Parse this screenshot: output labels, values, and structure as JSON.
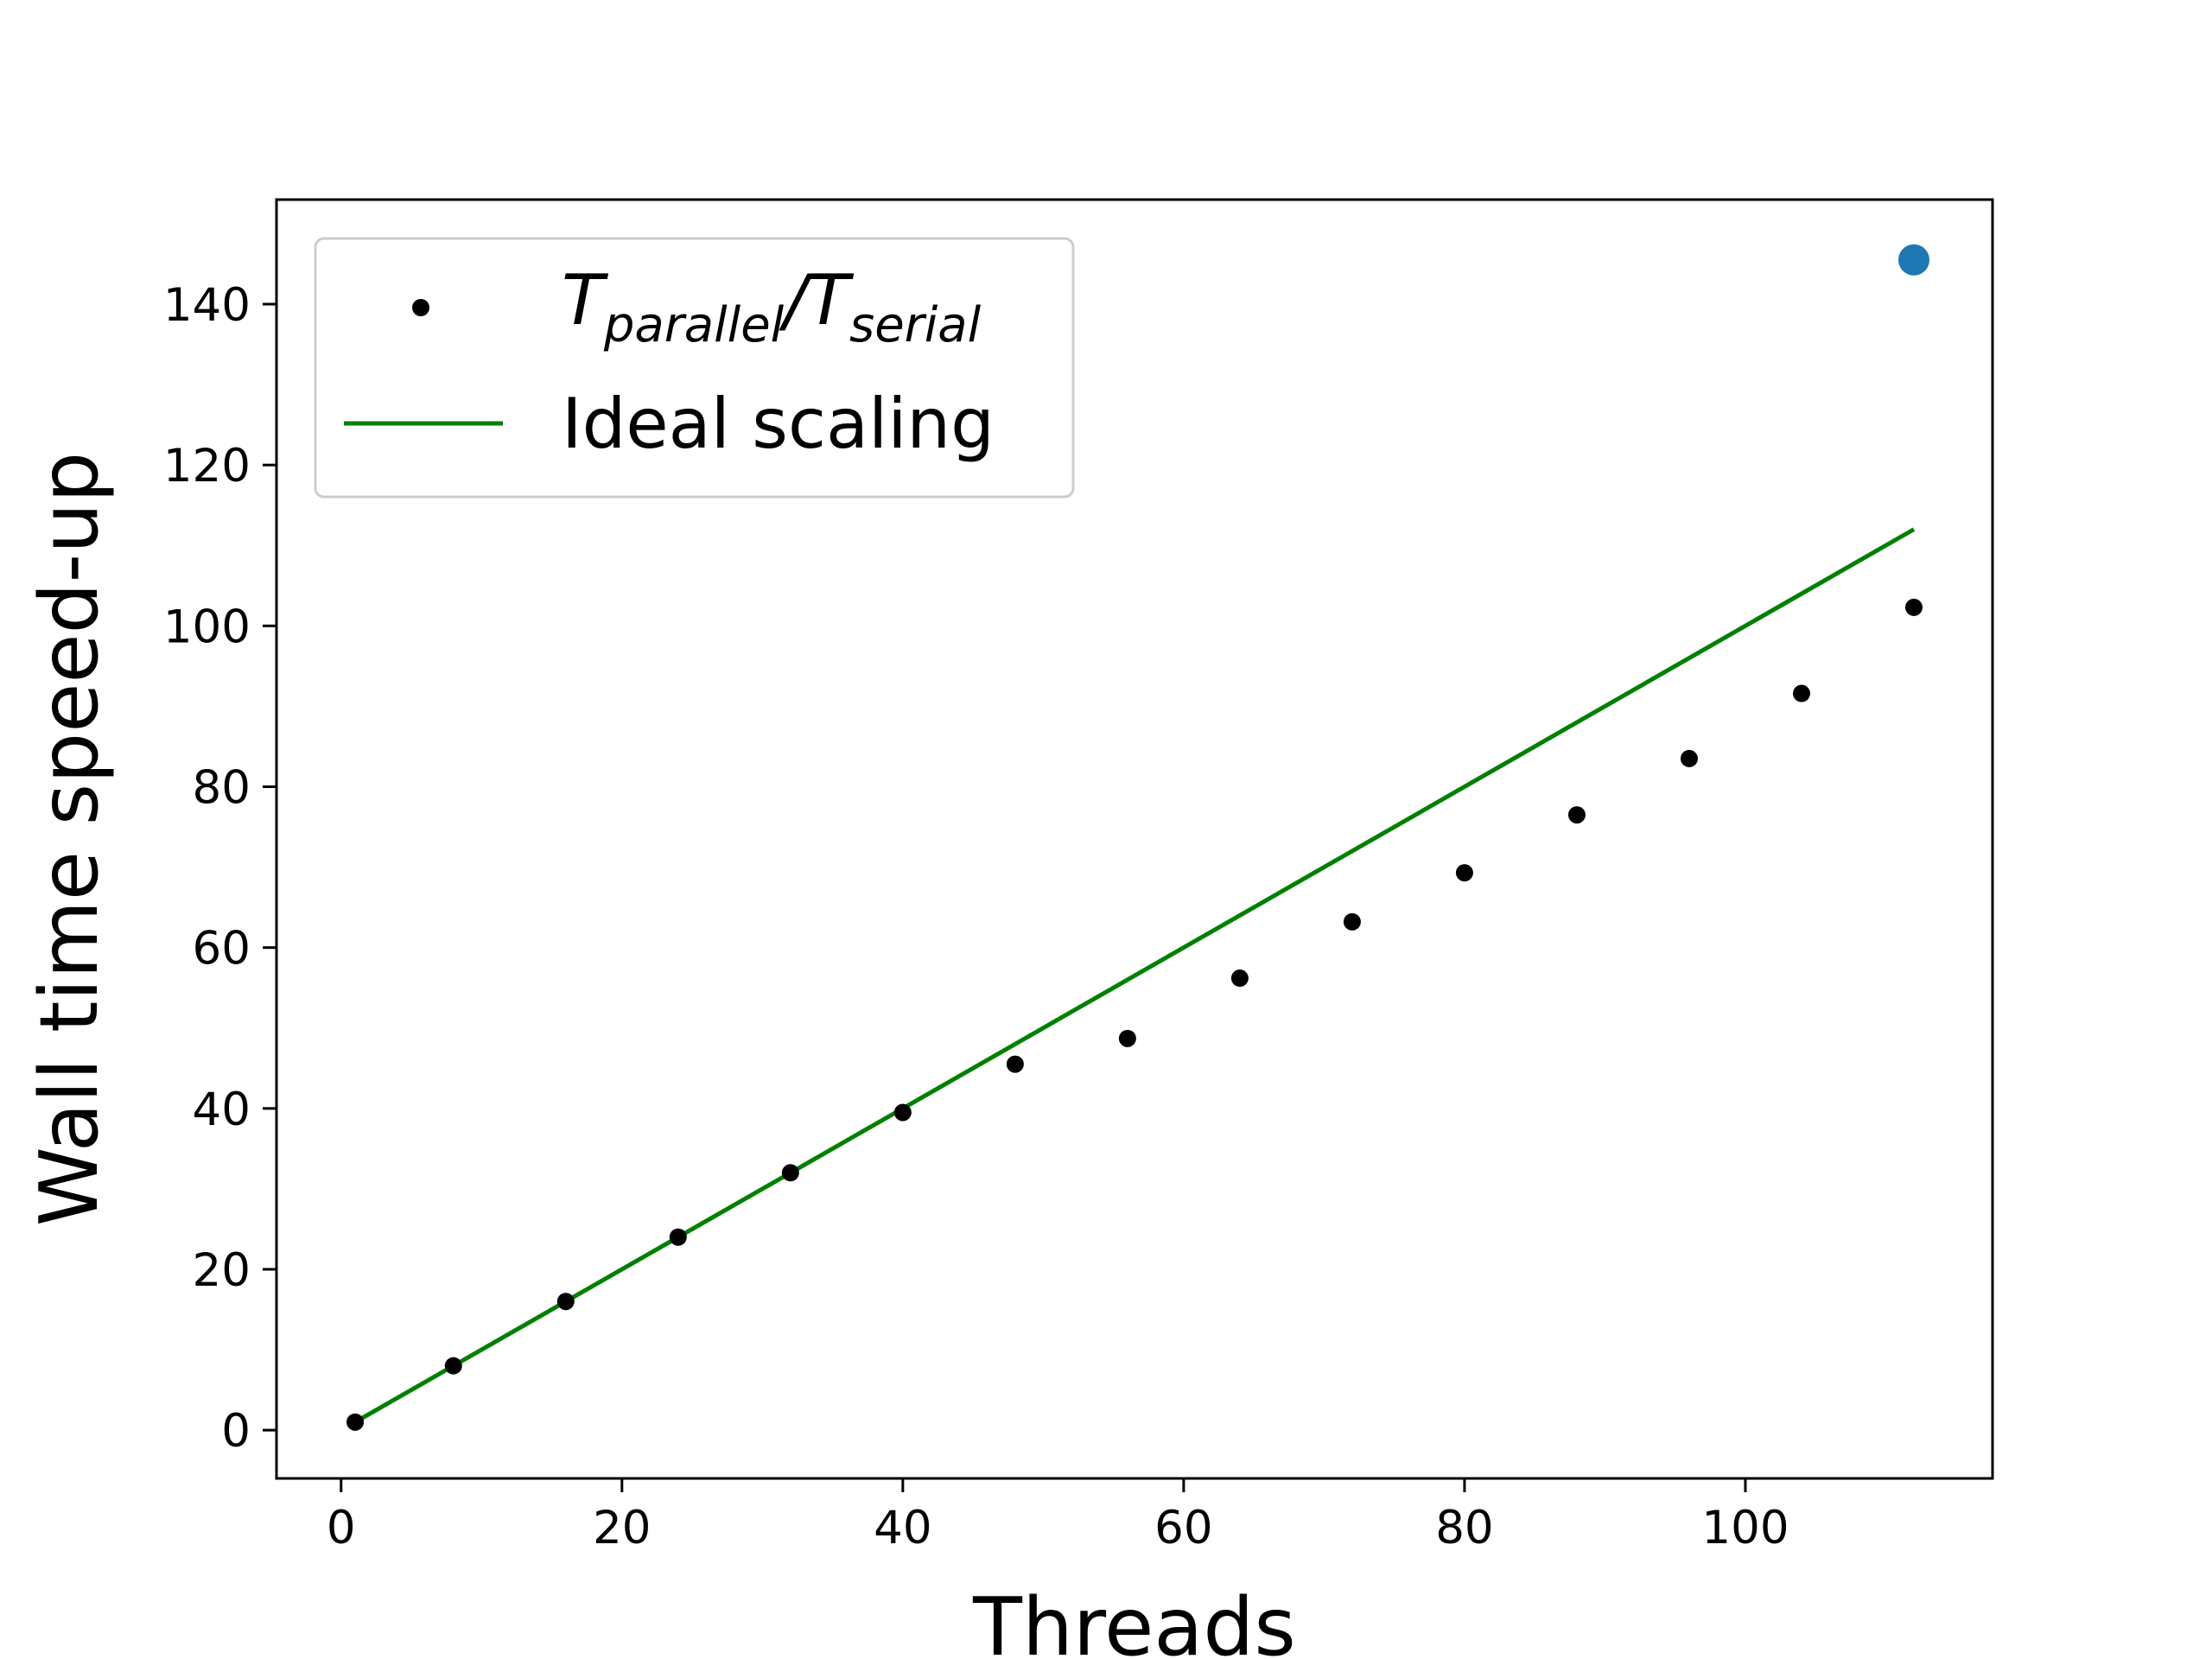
{
  "chart_data": {
    "type": "scatter",
    "xlabel": "Threads",
    "ylabel": "Wall time speed-up",
    "xlim": [
      -4.6,
      117.6
    ],
    "ylim": [
      -6.0,
      153.0
    ],
    "xticks": [
      0,
      20,
      40,
      60,
      80,
      100
    ],
    "yticks": [
      0,
      20,
      40,
      60,
      80,
      100,
      120,
      140
    ],
    "grid": false,
    "legend_position": "top-left",
    "series": [
      {
        "name_main": "T",
        "name_sub": "parallel",
        "name_sep": "/T",
        "name_sub2": "serial",
        "kind": "scatter",
        "color": "#000000",
        "x": [
          1,
          8,
          16,
          24,
          32,
          40,
          48,
          56,
          64,
          72,
          80,
          88,
          96,
          104,
          112
        ],
        "y": [
          1.0,
          8.0,
          16.0,
          24.0,
          32.0,
          39.5,
          45.5,
          48.7,
          56.2,
          63.2,
          69.3,
          76.5,
          83.5,
          91.6,
          102.3
        ]
      },
      {
        "name": "Ideal scaling",
        "kind": "line",
        "color": "#008000",
        "x": [
          1,
          112
        ],
        "y": [
          1,
          112
        ]
      },
      {
        "kind": "scatter",
        "color": "#1f77b4",
        "x": [
          112
        ],
        "y": [
          145.5
        ]
      }
    ]
  }
}
